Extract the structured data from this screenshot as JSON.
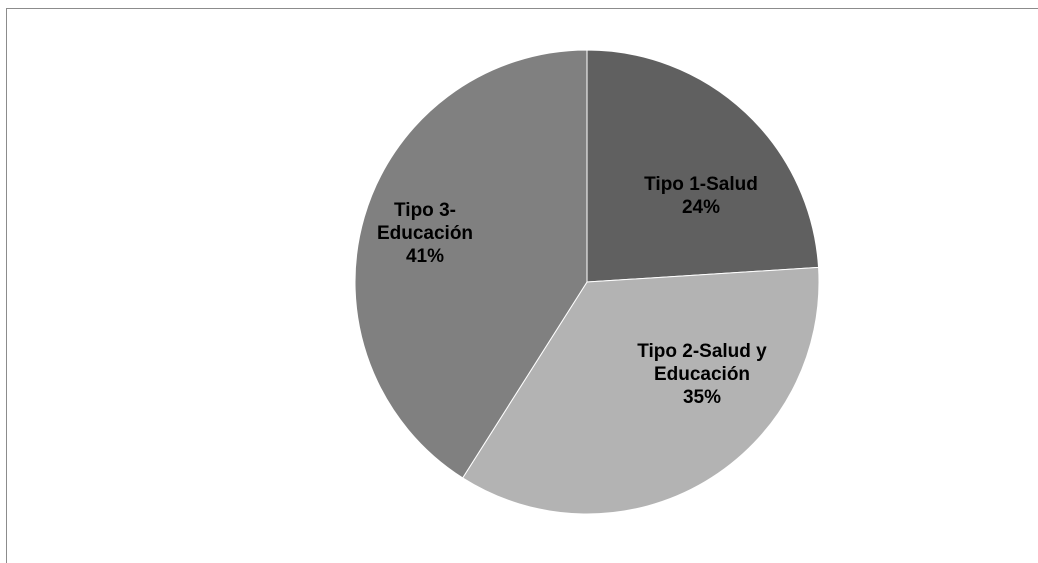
{
  "chart_data": {
    "type": "pie",
    "title": "",
    "legend": "none",
    "slices": [
      {
        "label_lines": [
          "Tipo 1-Salud"
        ],
        "value": 24,
        "value_label": "24%",
        "color": "#606060"
      },
      {
        "label_lines": [
          "Tipo 2-Salud y",
          "Educación"
        ],
        "value": 35,
        "value_label": "35%",
        "color": "#b3b3b3"
      },
      {
        "label_lines": [
          "Tipo 3-",
          "Educación"
        ],
        "value": 41,
        "value_label": "41%",
        "color": "#808080"
      }
    ]
  }
}
